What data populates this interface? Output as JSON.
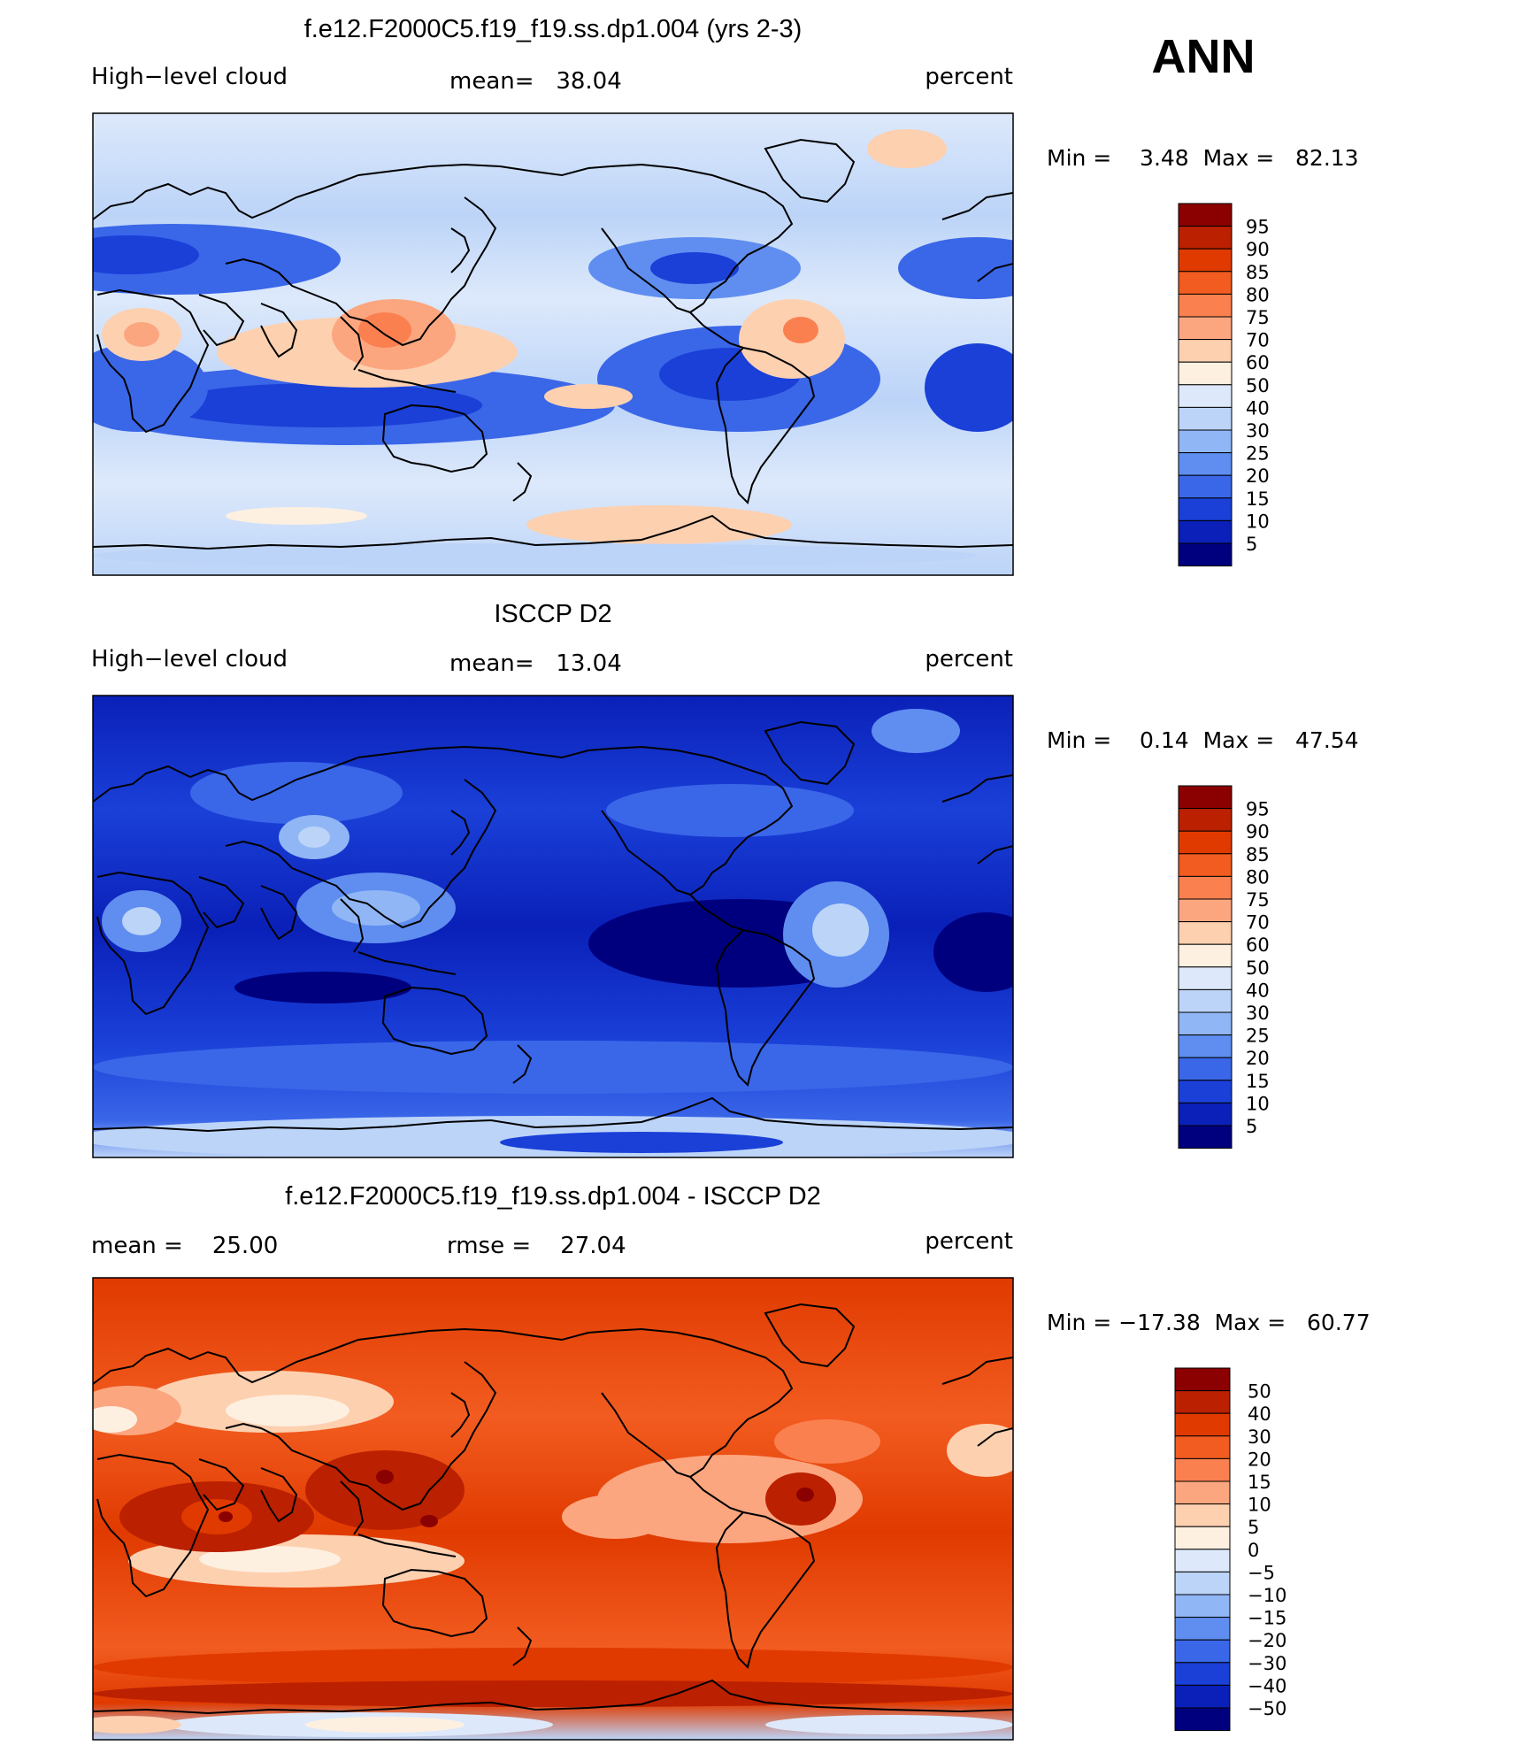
{
  "season": "ANN",
  "panels": [
    {
      "title": "f.e12.F2000C5.f19_f19.ss.dp1.004 (yrs 2-3)",
      "left_label": "High−level cloud",
      "center_label": "mean=   38.04",
      "right_label": "percent",
      "minmax": "Min =    3.48  Max =   82.13"
    },
    {
      "title": "ISCCP D2",
      "left_label": "High−level cloud",
      "center_label": "mean=   13.04",
      "right_label": "percent",
      "minmax": "Min =    0.14  Max =   47.54"
    },
    {
      "title": "f.e12.F2000C5.f19_f19.ss.dp1.004 - ISCCP D2",
      "left_label": "mean =    25.00",
      "center_label": "rmse =    27.04",
      "right_label": "percent",
      "minmax": "Min = −17.38  Max =   60.77"
    }
  ],
  "chart_data": [
    {
      "type": "heatmap",
      "title": "f.e12.F2000C5.f19_f19.ss.dp1.004 (yrs 2-3)",
      "variable": "High−level cloud",
      "units": "percent",
      "mean": 38.04,
      "min": 3.48,
      "max": 82.13,
      "colorbar_levels": [
        "95",
        "90",
        "85",
        "80",
        "75",
        "70",
        "60",
        "50",
        "40",
        "30",
        "25",
        "20",
        "15",
        "10",
        "5"
      ],
      "colorbar_colors": [
        "#8b0000",
        "#bb2000",
        "#e03a00",
        "#f25c20",
        "#fb8050",
        "#fca680",
        "#fdd0b0",
        "#fef0e0",
        "#dde9fb",
        "#bcd4f8",
        "#90b6f5",
        "#5f8ef0",
        "#3a66e8",
        "#1a40d8",
        "#0a20b8",
        "#00007f"
      ]
    },
    {
      "type": "heatmap",
      "title": "ISCCP D2",
      "variable": "High−level cloud",
      "units": "percent",
      "mean": 13.04,
      "min": 0.14,
      "max": 47.54,
      "colorbar_levels": [
        "95",
        "90",
        "85",
        "80",
        "75",
        "70",
        "60",
        "50",
        "40",
        "30",
        "25",
        "20",
        "15",
        "10",
        "5"
      ],
      "colorbar_colors": [
        "#8b0000",
        "#bb2000",
        "#e03a00",
        "#f25c20",
        "#fb8050",
        "#fca680",
        "#fdd0b0",
        "#fef0e0",
        "#dde9fb",
        "#bcd4f8",
        "#90b6f5",
        "#5f8ef0",
        "#3a66e8",
        "#1a40d8",
        "#0a20b8",
        "#00007f"
      ]
    },
    {
      "type": "heatmap",
      "title": "f.e12.F2000C5.f19_f19.ss.dp1.004 - ISCCP D2",
      "units": "percent",
      "mean": 25.0,
      "rmse": 27.04,
      "min": -17.38,
      "max": 60.77,
      "colorbar_levels": [
        "50",
        "40",
        "30",
        "20",
        "15",
        "10",
        "5",
        "0",
        "−5",
        "−10",
        "−15",
        "−20",
        "−30",
        "−40",
        "−50"
      ],
      "colorbar_colors": [
        "#8b0000",
        "#bb2000",
        "#e03a00",
        "#f25c20",
        "#fb8050",
        "#fca680",
        "#fdd0b0",
        "#fef0e0",
        "#dde9fb",
        "#bcd4f8",
        "#90b6f5",
        "#5f8ef0",
        "#3a66e8",
        "#1a40d8",
        "#0a20b8",
        "#00007f"
      ]
    }
  ]
}
